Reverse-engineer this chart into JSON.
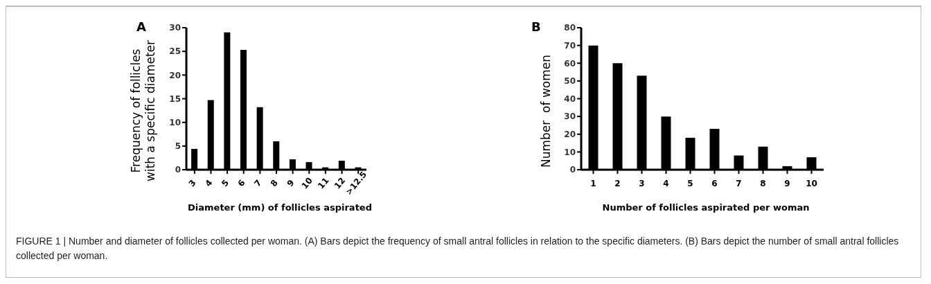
{
  "chart_data": [
    {
      "type": "bar",
      "title": "A",
      "xlabel": "Diameter (mm) of follicles aspirated",
      "ylabel": "Frequency of follicles\nwith a specific diameter",
      "categories": [
        "3",
        "4",
        "5",
        "6",
        "7",
        "8",
        "9",
        "10",
        "11",
        "12",
        ">12.5"
      ],
      "values": [
        4.4,
        14.7,
        29,
        25.3,
        13.2,
        6,
        2.2,
        1.6,
        0.5,
        1.9,
        0.5
      ],
      "color": "#000000",
      "ylim": [
        0,
        30
      ],
      "yticks": [
        0,
        5,
        10,
        15,
        20,
        25,
        30
      ],
      "grid": false
    },
    {
      "type": "bar",
      "title": "B",
      "xlabel": "Number of follicles aspirated per woman",
      "ylabel": "Number  of women",
      "categories": [
        "1",
        "2",
        "3",
        "4",
        "5",
        "6",
        "7",
        "8",
        "9",
        "10"
      ],
      "values": [
        70,
        60,
        53,
        30,
        18,
        23,
        8,
        13,
        2,
        7
      ],
      "color": "#000000",
      "ylim": [
        0,
        80
      ],
      "yticks": [
        0,
        10,
        20,
        30,
        40,
        50,
        60,
        70,
        80
      ],
      "grid": false,
      "annotations": [
        "FIGURE 1 | Number and diameter of follicles collected per woman. (A) Bars depict the frequency of small antral follicles in relation to the specific diameters. (B) Bars depict the number of small antral follicles collected per woman."
      ]
    }
  ]
}
